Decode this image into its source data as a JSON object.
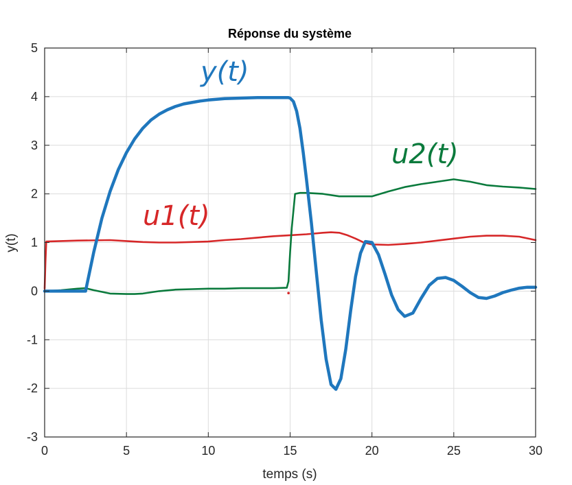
{
  "chart_data": {
    "type": "line",
    "title": "Réponse du système",
    "xlabel": "temps (s)",
    "ylabel": "y(t)",
    "xlim": [
      0,
      30
    ],
    "ylim": [
      -3,
      5
    ],
    "xticks": [
      0,
      5,
      10,
      15,
      20,
      25,
      30
    ],
    "yticks": [
      -3,
      -2,
      -1,
      0,
      1,
      2,
      3,
      4,
      5
    ],
    "grid": true,
    "colors": {
      "y": "#1f77bd",
      "u1": "#d62728",
      "u2": "#0a7a3c"
    },
    "annotations": {
      "y": "y(t)",
      "u1": "u1(t)",
      "u2": "u2(t)"
    },
    "series": [
      {
        "key": "y",
        "x": [
          0,
          2.5,
          3,
          3.5,
          4,
          4.5,
          5,
          5.5,
          6,
          6.5,
          7,
          7.5,
          8,
          8.5,
          9,
          9.5,
          10,
          11,
          12,
          13,
          14,
          14.9,
          15,
          15.2,
          15.4,
          15.6,
          15.8,
          16,
          16.3,
          16.6,
          16.9,
          17.2,
          17.5,
          17.8,
          18.1,
          18.4,
          18.7,
          19,
          19.3,
          19.6,
          20,
          20.4,
          20.8,
          21.2,
          21.6,
          22,
          22.5,
          23,
          23.5,
          24,
          24.5,
          25,
          25.5,
          26,
          26.5,
          27,
          27.5,
          28,
          28.5,
          29,
          29.5,
          30
        ],
        "values": [
          0,
          0,
          0.8,
          1.5,
          2.05,
          2.5,
          2.85,
          3.13,
          3.35,
          3.52,
          3.64,
          3.73,
          3.8,
          3.85,
          3.88,
          3.91,
          3.93,
          3.96,
          3.97,
          3.98,
          3.98,
          3.98,
          3.97,
          3.9,
          3.7,
          3.35,
          2.85,
          2.3,
          1.4,
          0.4,
          -0.6,
          -1.4,
          -1.92,
          -2.02,
          -1.8,
          -1.2,
          -0.4,
          0.3,
          0.78,
          1.02,
          1.0,
          0.75,
          0.35,
          -0.08,
          -0.38,
          -0.52,
          -0.45,
          -0.15,
          0.12,
          0.26,
          0.28,
          0.22,
          0.1,
          -0.03,
          -0.13,
          -0.15,
          -0.1,
          -0.03,
          0.02,
          0.06,
          0.08,
          0.08
        ]
      },
      {
        "key": "u1",
        "x": [
          0,
          0.05,
          0.1,
          2,
          4,
          5,
          6,
          7,
          8,
          9,
          10,
          11,
          12,
          13,
          14,
          15,
          16,
          17,
          17.5,
          18,
          18.5,
          19,
          19.5,
          20,
          21,
          22,
          23,
          24,
          25,
          26,
          27,
          28,
          29,
          30
        ],
        "values": [
          0.05,
          0.6,
          1.02,
          1.04,
          1.05,
          1.03,
          1.01,
          1.0,
          1.0,
          1.01,
          1.02,
          1.05,
          1.07,
          1.1,
          1.13,
          1.15,
          1.17,
          1.2,
          1.21,
          1.2,
          1.15,
          1.08,
          1.0,
          0.96,
          0.95,
          0.97,
          1.0,
          1.04,
          1.08,
          1.12,
          1.14,
          1.14,
          1.12,
          1.05
        ]
      },
      {
        "key": "u2",
        "x": [
          0,
          1,
          2,
          2.5,
          3,
          4,
          5,
          5.5,
          6,
          7,
          8,
          9,
          10,
          11,
          12,
          13,
          14,
          14.8,
          14.9,
          15.0,
          15.1,
          15.3,
          15.6,
          16,
          17,
          18,
          19,
          20,
          21,
          22,
          23,
          24,
          25,
          26,
          27,
          28,
          29,
          30
        ],
        "values": [
          0,
          0.02,
          0.05,
          0.06,
          0.02,
          -0.05,
          -0.06,
          -0.06,
          -0.05,
          0.0,
          0.03,
          0.04,
          0.05,
          0.05,
          0.06,
          0.06,
          0.06,
          0.07,
          0.2,
          0.8,
          1.3,
          2.0,
          2.02,
          2.02,
          2.0,
          1.95,
          1.95,
          1.95,
          2.05,
          2.14,
          2.2,
          2.25,
          2.3,
          2.25,
          2.18,
          2.15,
          2.13,
          2.1
        ]
      }
    ]
  }
}
